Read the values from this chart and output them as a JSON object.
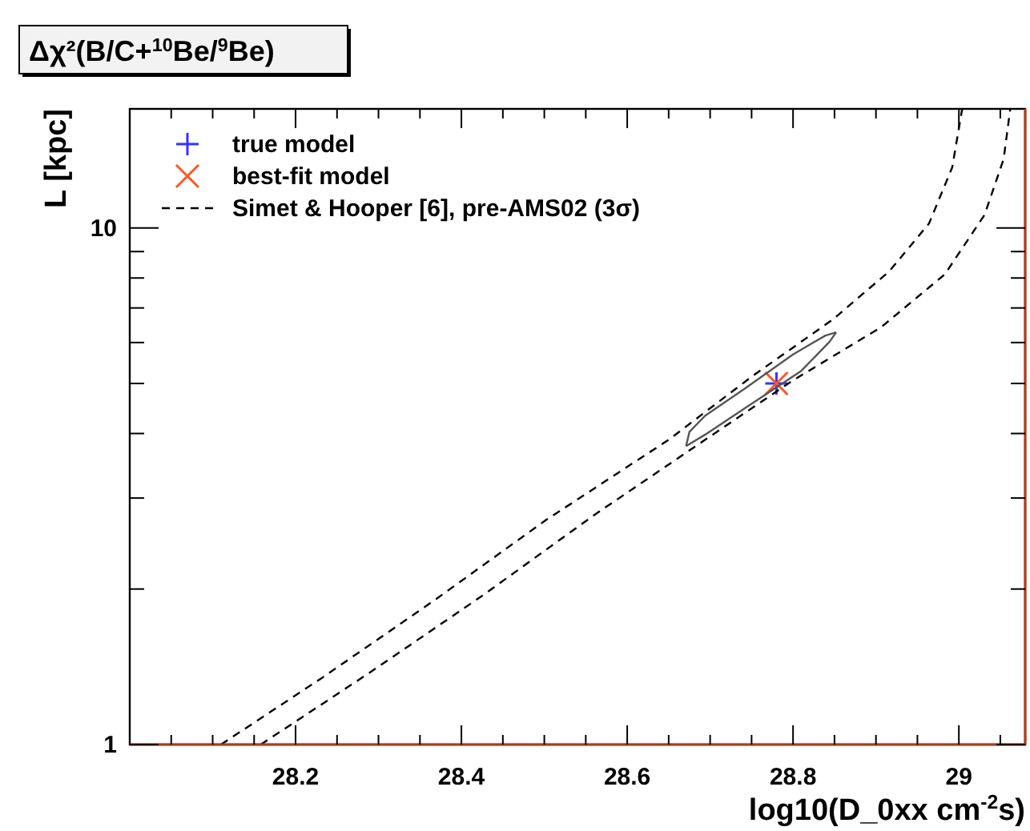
{
  "chart_data": {
    "type": "line",
    "title": "Δχ²(B/C+$^{10}$Be/$^{9}$Be)",
    "xlabel": "log10(D_0xx cm$^{-2}$s)",
    "ylabel": "L [kpc]",
    "log": "y",
    "xlim": [
      28.0,
      29.08
    ],
    "ylim": [
      1,
      17
    ],
    "xticks": [
      {
        "value": 28.05,
        "label": null
      },
      {
        "value": 28.1,
        "label": null
      },
      {
        "value": 28.15,
        "label": null
      },
      28.2,
      {
        "value": 28.25,
        "label": null
      },
      {
        "value": 28.3,
        "label": null
      },
      {
        "value": 28.35,
        "label": null
      },
      28.4,
      {
        "value": 28.45,
        "label": null
      },
      {
        "value": 28.5,
        "label": null
      },
      {
        "value": 28.55,
        "label": null
      },
      28.6,
      {
        "value": 28.65,
        "label": null
      },
      {
        "value": 28.7,
        "label": null
      },
      {
        "value": 28.75,
        "label": null
      },
      28.8,
      {
        "value": 28.85,
        "label": null
      },
      {
        "value": 28.9,
        "label": null
      },
      {
        "value": 28.95,
        "label": null
      },
      29,
      {
        "value": 29.05,
        "label": null
      }
    ],
    "yticks": [
      1,
      {
        "value": 2,
        "label": null
      },
      {
        "value": 3,
        "label": null
      },
      {
        "value": 4,
        "label": null
      },
      {
        "value": 5,
        "label": null
      },
      {
        "value": 6,
        "label": null
      },
      {
        "value": 7,
        "label": null
      },
      {
        "value": 8,
        "label": null
      },
      {
        "value": 9,
        "label": null
      },
      10
    ],
    "grid": false,
    "legend": "top left",
    "series": [
      {
        "name": "true model",
        "type": "scatter",
        "marker": "plus",
        "color": "#3333ff",
        "x": [
          28.78
        ],
        "values": [
          5.0
        ]
      },
      {
        "name": "best-fit model",
        "type": "scatter",
        "marker": "cross",
        "color": "#ff5522",
        "x": [
          28.78
        ],
        "values": [
          5.0
        ]
      },
      {
        "name": "Simet & Hooper [6], pre-AMS02 (3σ)",
        "line_style": "dashed",
        "color": "#000000",
        "x": [
          28.11,
          28.233,
          28.367,
          28.502,
          28.65,
          28.752,
          28.848,
          28.916,
          28.964,
          28.992,
          29.004
        ],
        "values": [
          1,
          1.35,
          1.9,
          2.72,
          3.89,
          5.18,
          6.65,
          8.24,
          10.2,
          13.1,
          17
        ]
      },
      {
        "line_style": "dashed",
        "color": "#000000",
        "x": [
          28.158,
          28.29,
          28.425,
          28.56,
          28.694,
          28.8,
          28.906,
          28.983,
          29.031,
          29.054,
          29.062
        ],
        "values": [
          1,
          1.38,
          1.94,
          2.78,
          3.89,
          5.07,
          6.42,
          8.13,
          10.6,
          13.6,
          17
        ]
      },
      {
        "line_style": "solid",
        "color": "#555555",
        "x": [
          28.671,
          28.675,
          28.694,
          28.742,
          28.8,
          28.839,
          28.852
        ],
        "values": [
          3.78,
          4.03,
          4.33,
          4.89,
          5.69,
          6.19,
          6.28
        ]
      },
      {
        "line_style": "solid",
        "color": "#555555",
        "x": [
          28.671,
          28.694,
          28.752,
          28.81,
          28.844,
          28.852
        ],
        "values": [
          3.78,
          3.98,
          4.59,
          5.29,
          6.02,
          6.28
        ]
      }
    ]
  }
}
